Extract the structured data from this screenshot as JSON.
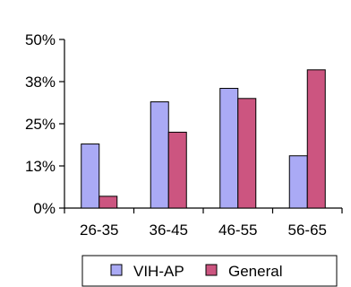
{
  "chart_data": {
    "type": "bar",
    "categories": [
      "26-35",
      "36-45",
      "46-55",
      "56-65"
    ],
    "series": [
      {
        "name": "VIH-AP",
        "values": [
          19,
          31.5,
          35.5,
          15.5
        ],
        "color": "#aaaaf5"
      },
      {
        "name": "General",
        "values": [
          3.5,
          22.5,
          32.5,
          41
        ],
        "color": "#cc5580"
      }
    ],
    "yticks": [
      "0%",
      "13%",
      "25%",
      "38%",
      "50%"
    ],
    "ylim": [
      0,
      50
    ],
    "grid": false,
    "legend_position": "bottom",
    "title": "",
    "xlabel": "",
    "ylabel": ""
  }
}
